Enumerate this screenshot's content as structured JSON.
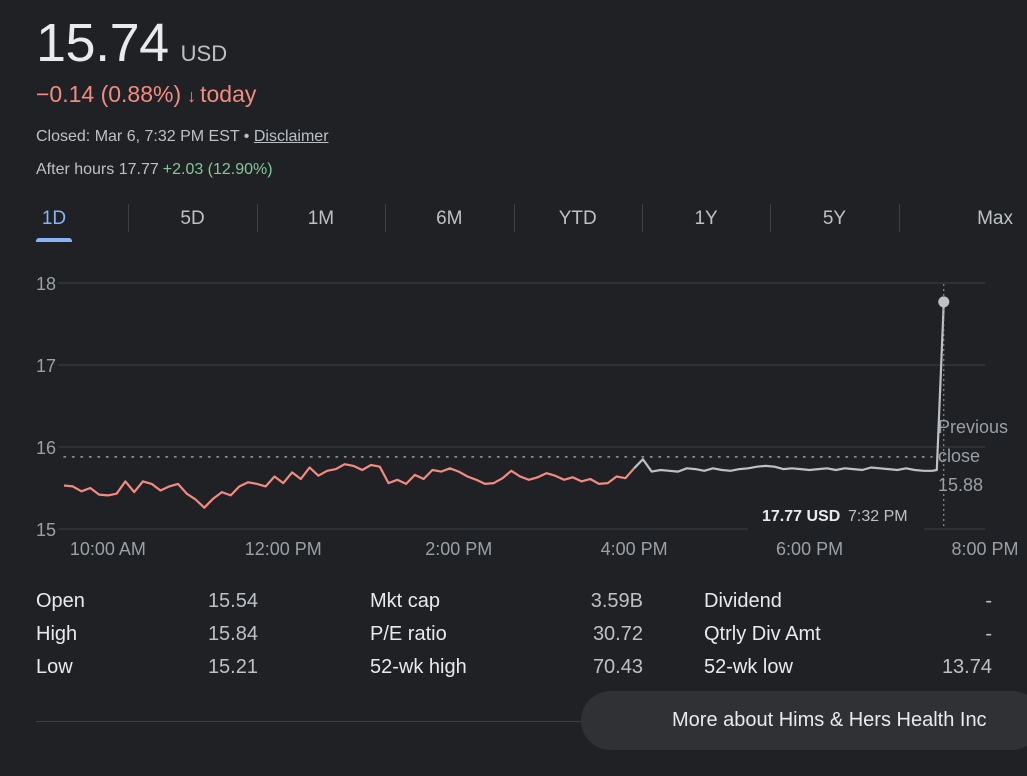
{
  "quote": {
    "price": "15.74",
    "currency": "USD",
    "change": "−0.14 (0.88%)",
    "change_arrow": "↓",
    "change_period": "today",
    "closed_text": "Closed: Mar 6, 7:32 PM EST",
    "separator": "•",
    "disclaimer": "Disclaimer",
    "after_hours_label": "After hours 17.77",
    "after_hours_change": "+2.03 (12.90%)"
  },
  "tabs": [
    "1D",
    "5D",
    "1M",
    "6M",
    "YTD",
    "1Y",
    "5Y",
    "Max"
  ],
  "active_tab": "1D",
  "colors": {
    "background": "#202124",
    "negative": "#f28b82",
    "positive": "#81c995",
    "accent": "#8ab4f8",
    "after_hours_line": "#bdc1c6"
  },
  "chart_data": {
    "type": "line",
    "x_tick_labels": [
      "10:00 AM",
      "12:00 PM",
      "2:00 PM",
      "4:00 PM",
      "6:00 PM",
      "8:00 PM"
    ],
    "y_ticks": [
      15,
      16,
      17,
      18
    ],
    "ylim": [
      15,
      18
    ],
    "previous_close": 15.88,
    "previous_close_label": [
      "Previous",
      "close",
      "15.88"
    ],
    "grid": true,
    "series": [
      {
        "session": "regular",
        "x": [
          9.5,
          9.6,
          9.7,
          9.8,
          9.9,
          10.0,
          10.1,
          10.2,
          10.3,
          10.4,
          10.5,
          10.6,
          10.7,
          10.8,
          10.9,
          11.0,
          11.1,
          11.2,
          11.3,
          11.4,
          11.5,
          11.6,
          11.7,
          11.8,
          11.9,
          12.0,
          12.1,
          12.2,
          12.3,
          12.4,
          12.5,
          12.6,
          12.7,
          12.8,
          12.9,
          13.0,
          13.1,
          13.2,
          13.3,
          13.4,
          13.5,
          13.6,
          13.7,
          13.8,
          13.9,
          14.0,
          14.1,
          14.2,
          14.3,
          14.4,
          14.5,
          14.6,
          14.7,
          14.8,
          14.9,
          15.0,
          15.1,
          15.2,
          15.3,
          15.4,
          15.5,
          15.6,
          15.7,
          15.8,
          15.9,
          16.0
        ],
        "y": [
          15.53,
          15.52,
          15.46,
          15.5,
          15.42,
          15.41,
          15.43,
          15.58,
          15.45,
          15.58,
          15.55,
          15.47,
          15.52,
          15.55,
          15.43,
          15.36,
          15.26,
          15.37,
          15.45,
          15.41,
          15.52,
          15.57,
          15.55,
          15.52,
          15.64,
          15.56,
          15.69,
          15.61,
          15.75,
          15.65,
          15.71,
          15.73,
          15.79,
          15.77,
          15.72,
          15.78,
          15.76,
          15.56,
          15.6,
          15.55,
          15.66,
          15.61,
          15.72,
          15.7,
          15.74,
          15.7,
          15.64,
          15.6,
          15.55,
          15.56,
          15.62,
          15.71,
          15.64,
          15.6,
          15.63,
          15.68,
          15.65,
          15.6,
          15.63,
          15.58,
          15.61,
          15.55,
          15.56,
          15.64,
          15.62,
          15.74
        ]
      },
      {
        "session": "after-hours",
        "x": [
          16.0,
          16.1,
          16.2,
          16.3,
          16.4,
          16.5,
          16.6,
          16.7,
          16.8,
          16.9,
          17.0,
          17.1,
          17.2,
          17.3,
          17.4,
          17.5,
          17.6,
          17.7,
          17.8,
          17.9,
          18.0,
          18.1,
          18.2,
          18.3,
          18.4,
          18.5,
          18.6,
          18.7,
          18.8,
          18.9,
          19.0,
          19.1,
          19.2,
          19.3,
          19.4,
          19.45,
          19.53
        ],
        "y": [
          15.74,
          15.85,
          15.7,
          15.72,
          15.71,
          15.7,
          15.74,
          15.73,
          15.71,
          15.74,
          15.72,
          15.71,
          15.73,
          15.74,
          15.76,
          15.77,
          15.76,
          15.73,
          15.74,
          15.73,
          15.72,
          15.73,
          15.74,
          15.72,
          15.74,
          15.73,
          15.72,
          15.75,
          15.74,
          15.73,
          15.72,
          15.74,
          15.72,
          15.71,
          15.71,
          15.72,
          17.77
        ]
      }
    ],
    "tooltip": {
      "price": "17.77 USD",
      "time": "7:32 PM"
    }
  },
  "stats": [
    [
      {
        "label": "Open",
        "value": "15.54"
      },
      {
        "label": "Mkt cap",
        "value": "3.59B"
      },
      {
        "label": "Dividend",
        "value": "-"
      }
    ],
    [
      {
        "label": "High",
        "value": "15.84"
      },
      {
        "label": "P/E ratio",
        "value": "30.72"
      },
      {
        "label": "Qtrly Div Amt",
        "value": "-"
      }
    ],
    [
      {
        "label": "Low",
        "value": "15.21"
      },
      {
        "label": "52-wk high",
        "value": "70.43"
      },
      {
        "label": "52-wk low",
        "value": "13.74"
      }
    ]
  ],
  "more_button": "More about Hims & Hers Health Inc"
}
